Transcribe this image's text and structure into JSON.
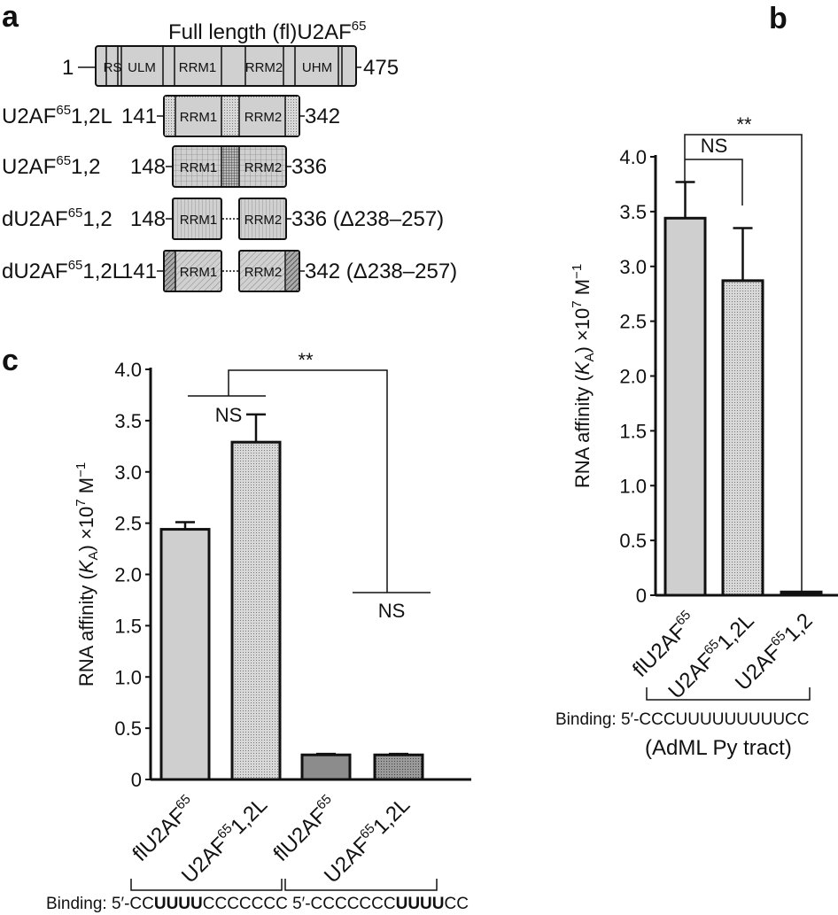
{
  "panel_a": {
    "letter": "a",
    "title": "Full length (fl)U2AF",
    "title_sup": "65",
    "full_length": {
      "start": "1",
      "end": "475",
      "domains": [
        "RS",
        "ULM",
        "RRM1",
        "RRM2",
        "UHM"
      ]
    },
    "constructs": [
      {
        "name": "U2AF",
        "sup": "65",
        "suffix": "1,2L",
        "start": "141",
        "end": "342",
        "deletion": "",
        "domains": [
          "RRM1",
          "RRM2"
        ]
      },
      {
        "name": "U2AF",
        "sup": "65",
        "suffix": "1,2",
        "start": "148",
        "end": "336",
        "deletion": "",
        "domains": [
          "RRM1",
          "RRM2"
        ]
      },
      {
        "name": "dU2AF",
        "sup": "65",
        "suffix": "1,2",
        "start": "148",
        "end": "336",
        "deletion": "(Δ238–257)",
        "domains": [
          "RRM1",
          "RRM2"
        ]
      },
      {
        "name": "dU2AF",
        "sup": "65",
        "suffix": "1,2L",
        "start": "141",
        "end": "342",
        "deletion": "(Δ238–257)",
        "domains": [
          "RRM1",
          "RRM2"
        ]
      }
    ]
  },
  "chart_data": [
    {
      "panel": "b",
      "type": "bar",
      "ylabel": "RNA affinity (K_A) ×10^7 M^-1",
      "ylim": [
        0,
        4.0
      ],
      "yticks": [
        "0",
        "0.5",
        "1.0",
        "1.5",
        "2.0",
        "2.5",
        "3.0",
        "3.5",
        "4.0"
      ],
      "categories": [
        "flU2AF65",
        "U2AF65 1,2L",
        "U2AF65 1,2"
      ],
      "values": [
        3.44,
        2.87,
        0.03
      ],
      "errors": [
        0.33,
        0.48,
        0
      ],
      "fills": [
        "#cfcfcf",
        "dots-light",
        "#111111"
      ],
      "annotations": [
        {
          "text": "NS",
          "between": [
            0,
            1
          ]
        },
        {
          "text": "**",
          "between": [
            0,
            2
          ]
        }
      ],
      "binding": "Binding: 5′-CCCUUUUUUUUUCC",
      "binding_note": "(AdML Py tract)"
    },
    {
      "panel": "c",
      "type": "bar",
      "ylabel": "RNA affinity (K_A) ×10^7 M^-1",
      "ylim": [
        0,
        4.0
      ],
      "yticks": [
        "0",
        "0.5",
        "1.0",
        "1.5",
        "2.0",
        "2.5",
        "3.0",
        "3.5",
        "4.0"
      ],
      "categories": [
        "flU2AF65",
        "U2AF65 1,2L",
        "flU2AF65",
        "U2AF65 1,2L"
      ],
      "values": [
        2.44,
        3.29,
        0.24,
        0.24
      ],
      "errors": [
        0.07,
        0.27,
        0.01,
        0.01
      ],
      "fills": [
        "#cfcfcf",
        "dots-light",
        "#8c8c8c",
        "dots-dark"
      ],
      "annotations": [
        {
          "text": "NS",
          "between": [
            0,
            1
          ]
        },
        {
          "text": "NS",
          "between": [
            2,
            3
          ]
        },
        {
          "text": "**",
          "between": [
            "0-1",
            "2-3"
          ]
        }
      ],
      "binding_prefix": "Binding: 5′-",
      "binding_groups": [
        [
          {
            "t": "CC",
            "b": false
          },
          {
            "t": "UUUU",
            "b": true
          },
          {
            "t": "CCCCCCC",
            "b": false
          }
        ],
        [
          {
            "t": "5′-CCCCCCC",
            "b": false
          },
          {
            "t": "UUUU",
            "b": true
          },
          {
            "t": "CC",
            "b": false
          }
        ]
      ]
    }
  ],
  "labels": {
    "panel_b": "b",
    "panel_c": "c",
    "ylabel_main": "RNA affinity (",
    "ylabel_k": "K",
    "ylabel_sub": "A",
    "ylabel_rest": ") ×10",
    "ylabel_exp": "7",
    "ylabel_unit": " M",
    "ylabel_unit_exp": "−1",
    "cat_fl": "flU2AF",
    "cat_u2": "U2AF",
    "sup65": "65"
  }
}
